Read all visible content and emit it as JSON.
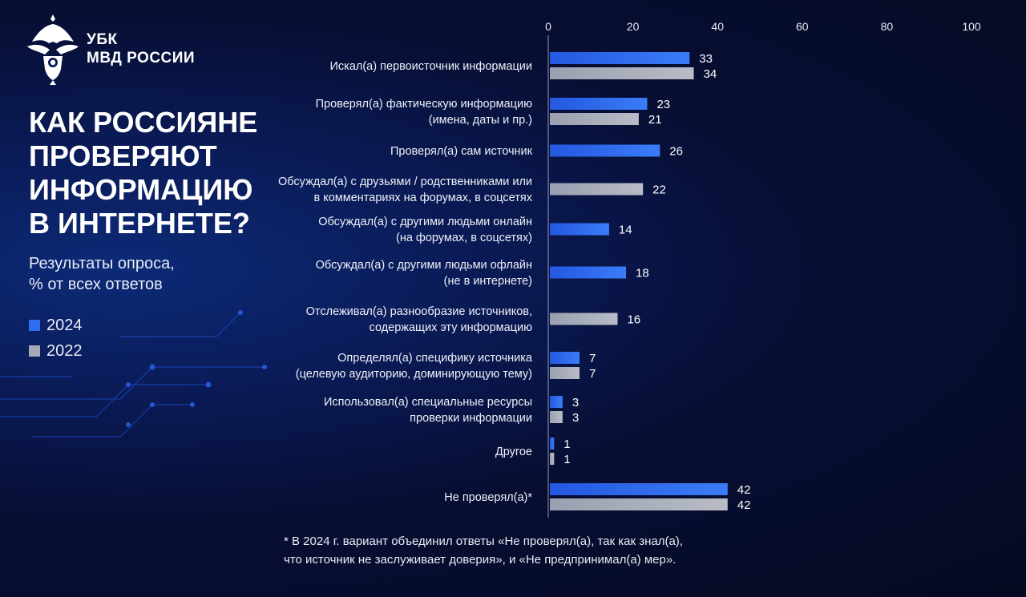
{
  "header": {
    "org_line1": "УБК",
    "org_line2": "МВД РОССИИ"
  },
  "title_lines": [
    "КАК РОССИЯНЕ",
    "ПРОВЕРЯЮТ",
    "ИНФОРМАЦИЮ",
    "В ИНТЕРНЕТЕ?"
  ],
  "subtitle_lines": [
    "Результаты опроса,",
    "% от всех ответов"
  ],
  "footnote_lines": [
    "* В 2024 г. вариант объединил ответы «Не проверял(а), так как знал(а),",
    "что источник не заслуживает доверия», и «Не предпринимал(а) мер»."
  ],
  "colors": {
    "series_2024": "#2f6df0",
    "series_2022": "#a7aab6",
    "axis": "#cfd6ea"
  },
  "chart_data": {
    "type": "bar",
    "orientation": "horizontal",
    "xlim": [
      0,
      100
    ],
    "x_ticks": [
      "0",
      "20",
      "40",
      "60",
      "80",
      "100"
    ],
    "legend": "left",
    "grid": false,
    "series": [
      {
        "name": "2024",
        "color": "#2f6df0"
      },
      {
        "name": "2022",
        "color": "#a7aab6"
      }
    ],
    "categories": [
      {
        "label_lines": [
          "Искал(а) первоисточник информации"
        ],
        "values": [
          33,
          34
        ]
      },
      {
        "label_lines": [
          "Проверял(а) фактическую информацию",
          "(имена, даты и пр.)"
        ],
        "values": [
          23,
          21
        ]
      },
      {
        "label_lines": [
          "Проверял(а) сам источник"
        ],
        "values": [
          26,
          null
        ]
      },
      {
        "label_lines": [
          "Обсуждал(а) с друзьями / родственниками или",
          "в комментариях на форумах, в соцсетях"
        ],
        "values": [
          null,
          22
        ]
      },
      {
        "label_lines": [
          "Обсуждал(а) с другими людьми онлайн",
          "(на форумах, в соцсетях)"
        ],
        "values": [
          14,
          null
        ]
      },
      {
        "label_lines": [
          "Обсуждал(а) с другими людьми офлайн",
          "(не в интернете)"
        ],
        "values": [
          18,
          null
        ]
      },
      {
        "label_lines": [
          "Отслеживал(а) разнообразие источников,",
          "содержащих эту информацию"
        ],
        "values": [
          null,
          16
        ]
      },
      {
        "label_lines": [
          "Определял(а) специфику источника",
          "(целевую аудиторию, доминирующую тему)"
        ],
        "values": [
          7,
          7
        ]
      },
      {
        "label_lines": [
          "Использовал(а) специальные ресурсы",
          "проверки информации"
        ],
        "values": [
          3,
          3
        ]
      },
      {
        "label_lines": [
          "Другое"
        ],
        "values": [
          1,
          1
        ]
      },
      {
        "label_lines": [
          "Не проверял(а)*"
        ],
        "values": [
          42,
          42
        ]
      }
    ]
  }
}
